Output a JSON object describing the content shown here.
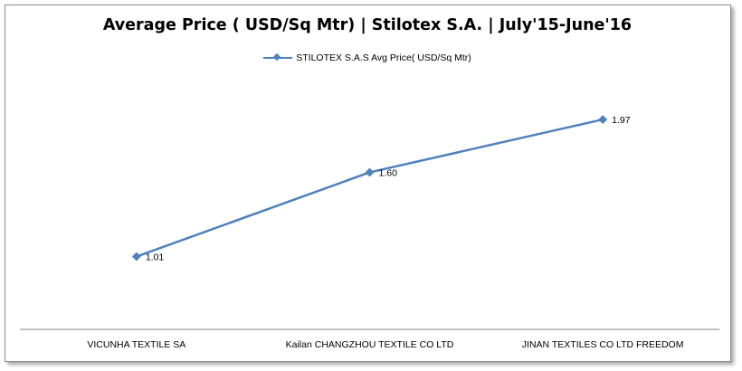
{
  "chart_data": {
    "type": "line",
    "title": "Average Price ( USD/Sq Mtr) | Stilotex S.A. | July'15-June'16",
    "categories": [
      "VICUNHA TEXTILE SA",
      "Kailan CHANGZHOU TEXTILE CO LTD",
      "JINAN TEXTILES CO LTD FREEDOM"
    ],
    "series": [
      {
        "name": "STILOTEX S.A.S Avg Price( USD/Sq Mtr)",
        "values": [
          1.01,
          1.6,
          1.97
        ],
        "labels": [
          "1.01",
          "1.60",
          "1.97"
        ],
        "color": "#4f81bd"
      }
    ],
    "legend_position": "top",
    "grid": false,
    "ylim": [
      0.5,
      2.3
    ]
  }
}
